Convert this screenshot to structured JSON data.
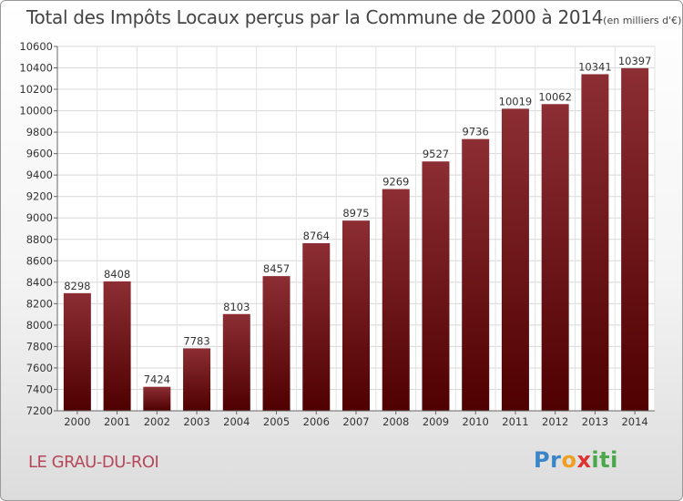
{
  "header": {
    "title": "Total des Impôts Locaux perçus par la Commune de 2000 à 2014",
    "unit": "(en milliers d'€)"
  },
  "footer": {
    "commune": "LE GRAU-DU-ROI",
    "logo_letters": [
      "P",
      "r",
      "o",
      "x",
      "i",
      "t",
      "i"
    ],
    "logo_colors": [
      "#3a84c8",
      "#3a84c8",
      "#f0a020",
      "#e03030",
      "#4aa84a",
      "#4aa84a",
      "#4aa84a"
    ]
  },
  "chart_data": {
    "type": "bar",
    "title": "Total des Impôts Locaux perçus par la Commune de 2000 à 2014",
    "ylabel": "",
    "xlabel": "",
    "categories": [
      "2000",
      "2001",
      "2002",
      "2003",
      "2004",
      "2005",
      "2006",
      "2007",
      "2008",
      "2009",
      "2010",
      "2011",
      "2012",
      "2013",
      "2014"
    ],
    "values": [
      8298,
      8408,
      7424,
      7783,
      8103,
      8457,
      8764,
      8975,
      9269,
      9527,
      9736,
      10019,
      10062,
      10341,
      10397
    ],
    "ylim": [
      7200,
      10600
    ],
    "yticks": [
      7200,
      7400,
      7600,
      7800,
      8000,
      8200,
      8400,
      8600,
      8800,
      9000,
      9200,
      9400,
      9600,
      9800,
      10000,
      10200,
      10400,
      10600
    ],
    "grid": true,
    "legend": "none",
    "bar_color_top": "#8c2e34",
    "bar_color_bottom": "#4f0000"
  }
}
